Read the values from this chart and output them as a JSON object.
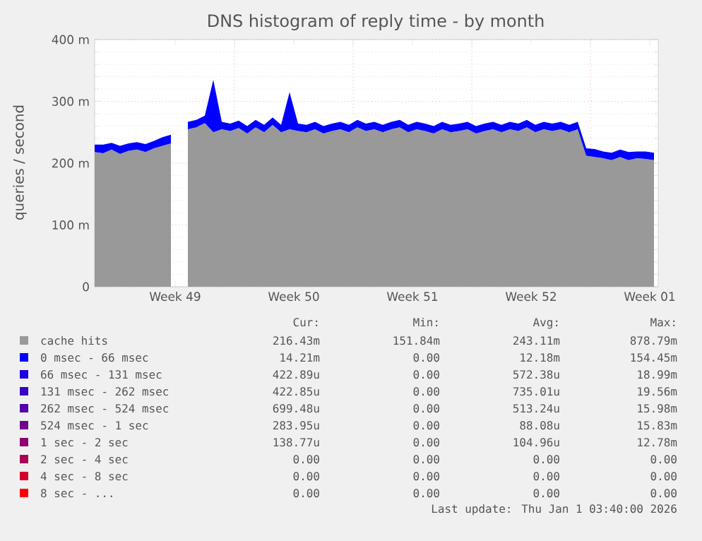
{
  "chart_data": {
    "type": "area",
    "stacked": true,
    "title": "DNS histogram of reply time - by month",
    "ylabel": "queries / second",
    "xlim": [
      "2025-11-29T18:00",
      "2026-01-02T00:00"
    ],
    "ylim": [
      0,
      400
    ],
    "xticks": [
      {
        "value": "2025-12-04T12:00",
        "label": "Week 49"
      },
      {
        "value": "2025-12-11T12:00",
        "label": "Week 50"
      },
      {
        "value": "2025-12-18T12:00",
        "label": "Week 51"
      },
      {
        "value": "2025-12-25T12:00",
        "label": "Week 52"
      },
      {
        "value": "2026-01-01T12:00",
        "label": "Week 01"
      },
      {
        "value": "2025-12-08T00:00",
        "label": null
      },
      {
        "value": "2025-12-15T00:00",
        "label": null
      },
      {
        "value": "2025-12-22T00:00",
        "label": null
      },
      {
        "value": "2025-12-29T00:00",
        "label": null
      }
    ],
    "yticks": [
      0,
      {
        "value": 100,
        "label": "100 m"
      },
      {
        "value": 200,
        "label": "200 m"
      },
      {
        "value": 300,
        "label": "300 m"
      },
      {
        "value": 400,
        "label": "400 m"
      }
    ],
    "grid": true,
    "legend": "bottom",
    "x": [
      "2025-11-29T18:00",
      "2025-11-30T06:00",
      "2025-11-30T18:00",
      "2025-12-01T06:00",
      "2025-12-01T18:00",
      "2025-12-02T06:00",
      "2025-12-02T18:00",
      "2025-12-03T06:00",
      "2025-12-03T18:00",
      "2025-12-04T06:00",
      "2025-12-04T18:00",
      "2025-12-05T06:00",
      "2025-12-05T18:00",
      "2025-12-06T06:00",
      "2025-12-06T18:00",
      "2025-12-07T06:00",
      "2025-12-07T18:00",
      "2025-12-08T06:00",
      "2025-12-08T18:00",
      "2025-12-09T06:00",
      "2025-12-09T18:00",
      "2025-12-10T06:00",
      "2025-12-10T18:00",
      "2025-12-11T06:00",
      "2025-12-11T18:00",
      "2025-12-12T06:00",
      "2025-12-12T18:00",
      "2025-12-13T06:00",
      "2025-12-13T18:00",
      "2025-12-14T06:00",
      "2025-12-14T18:00",
      "2025-12-15T06:00",
      "2025-12-15T18:00",
      "2025-12-16T06:00",
      "2025-12-16T18:00",
      "2025-12-17T06:00",
      "2025-12-17T18:00",
      "2025-12-18T06:00",
      "2025-12-18T18:00",
      "2025-12-19T06:00",
      "2025-12-19T18:00",
      "2025-12-20T06:00",
      "2025-12-20T18:00",
      "2025-12-21T06:00",
      "2025-12-21T18:00",
      "2025-12-22T06:00",
      "2025-12-22T18:00",
      "2025-12-23T06:00",
      "2025-12-23T18:00",
      "2025-12-24T06:00",
      "2025-12-24T18:00",
      "2025-12-25T06:00",
      "2025-12-25T18:00",
      "2025-12-26T06:00",
      "2025-12-26T18:00",
      "2025-12-27T06:00",
      "2025-12-27T18:00",
      "2025-12-28T06:00",
      "2025-12-28T18:00",
      "2025-12-29T06:00",
      "2025-12-29T18:00",
      "2025-12-30T06:00",
      "2025-12-30T18:00",
      "2025-12-31T06:00",
      "2025-12-31T18:00",
      "2026-01-01T06:00",
      "2026-01-01T18:00"
    ],
    "series": [
      {
        "name": "cache hits",
        "color": "#999999",
        "values": [
          218,
          216,
          222,
          215,
          220,
          222,
          218,
          224,
          228,
          232,
          null,
          255,
          258,
          265,
          250,
          255,
          252,
          257,
          248,
          258,
          250,
          262,
          250,
          255,
          252,
          250,
          255,
          248,
          252,
          255,
          250,
          258,
          252,
          255,
          250,
          255,
          258,
          250,
          255,
          252,
          248,
          255,
          250,
          252,
          255,
          248,
          252,
          255,
          250,
          255,
          252,
          258,
          250,
          255,
          252,
          255,
          250,
          255,
          212,
          210,
          208,
          205,
          210,
          205,
          208,
          207,
          205
        ]
      },
      {
        "name": "0 msec - 66 msec",
        "color": "#0000ff",
        "values": [
          12,
          14,
          11,
          13,
          12,
          12,
          13,
          12,
          14,
          14,
          null,
          12,
          12,
          12,
          85,
          12,
          12,
          12,
          12,
          12,
          12,
          12,
          12,
          60,
          12,
          12,
          12,
          12,
          12,
          12,
          12,
          12,
          12,
          12,
          12,
          12,
          12,
          12,
          12,
          12,
          12,
          12,
          12,
          12,
          12,
          12,
          12,
          12,
          12,
          12,
          12,
          12,
          12,
          12,
          12,
          12,
          12,
          12,
          12,
          13,
          11,
          12,
          12,
          13,
          11,
          12,
          12
        ]
      },
      {
        "name": "66 msec - 131 msec",
        "color": "#1c00e3",
        "values": [
          null,
          null,
          null,
          null,
          null,
          null,
          null,
          null,
          null,
          null,
          null,
          null,
          null,
          null,
          null,
          null,
          null,
          null,
          null,
          null,
          null,
          null,
          null,
          null,
          null,
          null,
          null,
          null,
          null,
          null,
          null,
          null,
          null,
          null,
          null,
          null,
          null,
          null,
          null,
          null,
          null,
          null,
          null,
          null,
          null,
          null,
          null,
          null,
          null,
          null,
          null,
          null,
          null,
          null,
          null,
          null,
          null,
          null,
          null,
          null,
          null,
          null,
          null,
          null,
          null,
          null,
          null
        ]
      },
      {
        "name": "131 msec - 262 msec",
        "color": "#3800c7",
        "values": [
          null,
          null,
          null,
          null,
          null,
          null,
          null,
          null,
          null,
          null,
          null,
          null,
          null,
          null,
          null,
          null,
          null,
          null,
          null,
          null,
          null,
          null,
          null,
          null,
          null,
          null,
          null,
          null,
          null,
          null,
          null,
          null,
          null,
          null,
          null,
          null,
          null,
          null,
          null,
          null,
          null,
          null,
          null,
          null,
          null,
          null,
          null,
          null,
          null,
          null,
          null,
          null,
          null,
          null,
          null,
          null,
          null,
          null,
          null,
          null,
          null,
          null,
          null,
          null,
          null,
          null,
          null
        ]
      },
      {
        "name": "262 msec - 524 msec",
        "color": "#5500aa",
        "values": [
          null,
          null,
          null,
          null,
          null,
          null,
          null,
          null,
          null,
          null,
          null,
          null,
          null,
          null,
          null,
          null,
          null,
          null,
          null,
          null,
          null,
          null,
          null,
          null,
          null,
          null,
          null,
          null,
          null,
          null,
          null,
          null,
          null,
          null,
          null,
          null,
          null,
          null,
          null,
          null,
          null,
          null,
          null,
          null,
          null,
          null,
          null,
          null,
          null,
          null,
          null,
          null,
          null,
          null,
          null,
          null,
          null,
          null,
          null,
          null,
          null,
          null,
          null,
          null,
          null,
          null,
          null
        ]
      },
      {
        "name": "524 msec - 1 sec",
        "color": "#71008e",
        "values": [
          null,
          null,
          null,
          null,
          null,
          null,
          null,
          null,
          null,
          null,
          null,
          null,
          null,
          null,
          null,
          null,
          null,
          null,
          null,
          null,
          null,
          null,
          null,
          null,
          null,
          null,
          null,
          null,
          null,
          null,
          null,
          null,
          null,
          null,
          null,
          null,
          null,
          null,
          null,
          null,
          null,
          null,
          null,
          null,
          null,
          null,
          null,
          null,
          null,
          null,
          null,
          null,
          null,
          null,
          null,
          null,
          null,
          null,
          null,
          null,
          null,
          null,
          null,
          null,
          null,
          null,
          null
        ]
      },
      {
        "name": "1 sec - 2 sec",
        "color": "#8e0071",
        "values": [
          null,
          null,
          null,
          null,
          null,
          null,
          null,
          null,
          null,
          null,
          null,
          null,
          null,
          null,
          null,
          null,
          null,
          null,
          null,
          null,
          null,
          null,
          null,
          null,
          null,
          null,
          null,
          null,
          null,
          null,
          null,
          null,
          null,
          null,
          null,
          null,
          null,
          null,
          null,
          null,
          null,
          null,
          null,
          null,
          null,
          null,
          null,
          null,
          null,
          null,
          null,
          null,
          null,
          null,
          null,
          null,
          null,
          null,
          null,
          null,
          null,
          null,
          null,
          null,
          null,
          null,
          null
        ]
      },
      {
        "name": "2 sec - 4 sec",
        "color": "#aa0055",
        "values": [
          null,
          null,
          null,
          null,
          null,
          null,
          null,
          null,
          null,
          null,
          null,
          null,
          null,
          null,
          null,
          null,
          null,
          null,
          null,
          null,
          null,
          null,
          null,
          null,
          null,
          null,
          null,
          null,
          null,
          null,
          null,
          null,
          null,
          null,
          null,
          null,
          null,
          null,
          null,
          null,
          null,
          null,
          null,
          null,
          null,
          null,
          null,
          null,
          null,
          null,
          null,
          null,
          null,
          null,
          null,
          null,
          null,
          null,
          null,
          null,
          null,
          null,
          null,
          null,
          null,
          null,
          null
        ]
      },
      {
        "name": "4 sec - 8 sec",
        "color": "#d5002b",
        "values": [
          null,
          null,
          null,
          null,
          null,
          null,
          null,
          null,
          null,
          null,
          null,
          null,
          null,
          null,
          null,
          null,
          null,
          null,
          null,
          null,
          null,
          null,
          null,
          null,
          null,
          null,
          null,
          null,
          null,
          null,
          null,
          null,
          null,
          null,
          null,
          null,
          null,
          null,
          null,
          null,
          null,
          null,
          null,
          null,
          null,
          null,
          null,
          null,
          null,
          null,
          null,
          null,
          null,
          null,
          null,
          null,
          null,
          null,
          null,
          null,
          null,
          null,
          null,
          null,
          null,
          null,
          null
        ]
      },
      {
        "name": "8 sec - ...",
        "color": "#ff0000",
        "values": [
          null,
          null,
          null,
          null,
          null,
          null,
          null,
          null,
          null,
          null,
          null,
          null,
          null,
          null,
          null,
          null,
          null,
          null,
          null,
          null,
          null,
          null,
          null,
          null,
          null,
          null,
          null,
          null,
          null,
          null,
          null,
          null,
          null,
          null,
          null,
          null,
          null,
          null,
          null,
          null,
          null,
          null,
          null,
          null,
          null,
          null,
          null,
          null,
          null,
          null,
          null,
          null,
          null,
          null,
          null,
          null,
          null,
          null,
          null,
          null,
          null,
          null,
          null,
          null,
          null,
          null,
          null
        ]
      }
    ],
    "annotations": [
      "Cur:",
      "Min:",
      "Avg:",
      "Max:",
      "216.43m",
      "151.84m",
      "243.11m",
      "878.79m",
      "14.21m",
      "0.00",
      "12.18m",
      "154.45m",
      "422.89u",
      "0.00",
      "572.38u",
      "18.99m",
      "422.85u",
      "0.00",
      "735.01u",
      "19.56m",
      "699.48u",
      "0.00",
      "513.24u",
      "15.98m",
      "283.95u",
      "0.00",
      "88.08u",
      "15.83m",
      "138.77u",
      "0.00",
      "104.96u",
      "12.78m",
      "0.00",
      "0.00",
      "0.00",
      "0.00",
      "0.00",
      "0.00",
      "0.00",
      "0.00",
      "0.00",
      "0.00",
      "0.00",
      "0.00",
      "Last update: Thu Jan  1 03:40:00 2026"
    ]
  }
}
